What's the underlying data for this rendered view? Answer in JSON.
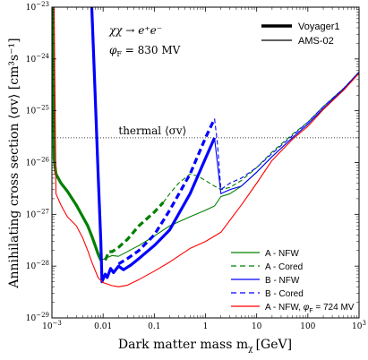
{
  "chart_data": {
    "type": "line",
    "xlabel": "Dark matter mass m",
    "xlabel_sub": "χ",
    "xlabel_unit": "[GeV]",
    "ylabel": "Annihilating cross section ⟨σv⟩ [cm³s⁻¹]",
    "xlim": [
      0.001,
      1000
    ],
    "ylim": [
      1e-29,
      1e-23
    ],
    "xscale": "log",
    "yscale": "log",
    "x_ticks": [
      {
        "value": 0.001,
        "base": "10",
        "exp": "−3"
      },
      {
        "value": 0.01,
        "plain": "0.01"
      },
      {
        "value": 0.1,
        "plain": "0.1"
      },
      {
        "value": 1,
        "plain": "1"
      },
      {
        "value": 10,
        "plain": "10"
      },
      {
        "value": 100,
        "plain": "100"
      },
      {
        "value": 1000,
        "base": "10",
        "exp": "3"
      }
    ],
    "y_ticks": [
      {
        "value": 1e-29,
        "base": "10",
        "exp": "−29"
      },
      {
        "value": 1e-28,
        "base": "10",
        "exp": "−28"
      },
      {
        "value": 1e-27,
        "base": "10",
        "exp": "−27"
      },
      {
        "value": 1e-26,
        "base": "10",
        "exp": "−26"
      },
      {
        "value": 1e-25,
        "base": "10",
        "exp": "−25"
      },
      {
        "value": 1e-24,
        "base": "10",
        "exp": "−24"
      },
      {
        "value": 1e-23,
        "base": "10",
        "exp": "−23"
      }
    ],
    "annotations": {
      "process": "χχ → e⁺e⁻",
      "phi": "φ",
      "phi_sub": "F",
      "phi_value": " = 830 MV",
      "thermal_label": "thermal ⟨σv⟩"
    },
    "thermal_value": 3e-26,
    "experiment_legend": [
      {
        "label": "Voyager1",
        "style": "thick"
      },
      {
        "label": "AMS-02",
        "style": "thin"
      }
    ],
    "series": [
      {
        "name": "A - NFW",
        "color": "#008000",
        "dash": "solid",
        "segments": [
          {
            "width": "thick",
            "points": [
              [
                0.00105,
                1e-23
              ],
              [
                0.0011,
                1.2e-26
              ],
              [
                0.0012,
                6e-27
              ],
              [
                0.0015,
                4e-27
              ],
              [
                0.002,
                2.8e-27
              ],
              [
                0.003,
                1.5e-27
              ],
              [
                0.004,
                9e-28
              ],
              [
                0.005,
                6e-28
              ],
              [
                0.006,
                3.8e-28
              ],
              [
                0.007,
                2.5e-28
              ],
              [
                0.008,
                1.7e-28
              ],
              [
                0.009,
                1.3e-28
              ]
            ]
          },
          {
            "width": "thin",
            "points": [
              [
                0.009,
                1.3e-28
              ],
              [
                0.015,
                1.6e-28
              ],
              [
                0.02,
                1.55e-28
              ],
              [
                0.05,
                2.5e-28
              ],
              [
                0.1,
                3.8e-28
              ],
              [
                0.2,
                6e-28
              ],
              [
                0.5,
                9e-28
              ],
              [
                1.0,
                1.2e-27
              ],
              [
                1.5,
                1.45e-27
              ],
              [
                2.0,
                2.2e-27
              ],
              [
                3.0,
                2.5e-27
              ],
              [
                5.0,
                3.5e-27
              ],
              [
                10,
                6.5e-27
              ],
              [
                20,
                1.3e-26
              ],
              [
                50,
                3e-26
              ],
              [
                100,
                5.5e-26
              ],
              [
                200,
                1.1e-25
              ],
              [
                500,
                2.6e-25
              ],
              [
                1000,
                5.5e-25
              ]
            ]
          }
        ]
      },
      {
        "name": "A - Cored",
        "color": "#008000",
        "dash": "dashed",
        "segments": [
          {
            "width": "thick",
            "points": [
              [
                0.011,
                1.3e-28
              ],
              [
                0.013,
                1.9e-28
              ],
              [
                0.015,
                1.9e-28
              ],
              [
                0.02,
                2.3e-28
              ],
              [
                0.03,
                3.3e-28
              ],
              [
                0.05,
                6e-28
              ],
              [
                0.1,
                1.1e-27
              ],
              [
                0.15,
                1.7e-27
              ]
            ]
          },
          {
            "width": "thin",
            "points": [
              [
                0.15,
                1.7e-27
              ],
              [
                0.2,
                2.5e-27
              ],
              [
                0.3,
                4e-27
              ],
              [
                0.5,
                6e-27
              ],
              [
                0.7,
                5.5e-27
              ],
              [
                1.0,
                4.5e-27
              ],
              [
                1.5,
                3.5e-27
              ],
              [
                2.0,
                3e-27
              ],
              [
                3.0,
                3.3e-27
              ],
              [
                5.0,
                4.5e-27
              ],
              [
                10,
                8e-27
              ],
              [
                20,
                1.6e-26
              ],
              [
                50,
                3.5e-26
              ],
              [
                100,
                6e-26
              ],
              [
                200,
                1.2e-25
              ],
              [
                500,
                2.7e-25
              ],
              [
                1000,
                5.6e-25
              ]
            ]
          }
        ]
      },
      {
        "name": "B - NFW",
        "color": "#0000ff",
        "dash": "solid",
        "segments": [
          {
            "width": "thick",
            "points": [
              [
                0.006,
                1e-23
              ],
              [
                0.007,
                2e-25
              ],
              [
                0.008,
                6e-27
              ],
              [
                0.009,
                3e-28
              ],
              [
                0.0095,
                5e-29
              ],
              [
                0.011,
                7e-29
              ],
              [
                0.012,
                6e-29
              ],
              [
                0.014,
                9e-29
              ],
              [
                0.016,
                7.5e-29
              ],
              [
                0.02,
                1e-28
              ],
              [
                0.025,
                8.5e-29
              ],
              [
                0.035,
                1.05e-28
              ],
              [
                0.05,
                1.4e-28
              ],
              [
                0.1,
                2.5e-28
              ],
              [
                0.2,
                5e-28
              ],
              [
                0.5,
                2.5e-27
              ],
              [
                1.0,
                1.2e-26
              ],
              [
                1.5,
                3e-26
              ]
            ]
          },
          {
            "width": "thin",
            "points": [
              [
                1.5,
                3e-26
              ],
              [
                2.0,
                2.5e-27
              ],
              [
                3.0,
                3e-27
              ],
              [
                5.0,
                3.5e-27
              ],
              [
                10,
                6.5e-27
              ],
              [
                20,
                1.3e-26
              ],
              [
                50,
                3e-26
              ],
              [
                100,
                5.5e-26
              ],
              [
                200,
                1.1e-25
              ],
              [
                500,
                2.6e-25
              ],
              [
                1000,
                5.5e-25
              ]
            ]
          }
        ]
      },
      {
        "name": "B - Cored",
        "color": "#0000ff",
        "dash": "dashed",
        "segments": [
          {
            "width": "thick",
            "points": [
              [
                0.02,
                1.1e-28
              ],
              [
                0.03,
                1.4e-28
              ],
              [
                0.05,
                2e-28
              ],
              [
                0.1,
                4e-28
              ],
              [
                0.2,
                1.2e-27
              ],
              [
                0.5,
                6e-27
              ],
              [
                1.0,
                3e-26
              ],
              [
                1.5,
                7e-26
              ]
            ]
          },
          {
            "width": "thin",
            "points": [
              [
                1.5,
                7e-26
              ],
              [
                1.7,
                2.5e-26
              ],
              [
                2.0,
                3e-27
              ],
              [
                3.0,
                4e-27
              ],
              [
                5.0,
                5e-27
              ],
              [
                10,
                8e-27
              ],
              [
                20,
                1.5e-26
              ],
              [
                50,
                3.3e-26
              ],
              [
                100,
                6e-26
              ],
              [
                200,
                1.2e-25
              ],
              [
                500,
                2.7e-25
              ],
              [
                1000,
                5.6e-25
              ]
            ]
          }
        ]
      },
      {
        "name": "A - NFW, ",
        "label_phi": "φ",
        "label_phi_sub": "F",
        "label_phi_value": " = 724 MV",
        "color": "#ff0000",
        "dash": "solid",
        "segments": [
          {
            "width": "thin",
            "points": [
              [
                0.0011,
                1e-23
              ],
              [
                0.0012,
                2.5e-27
              ],
              [
                0.0015,
                1.5e-27
              ],
              [
                0.002,
                9e-28
              ],
              [
                0.003,
                6e-28
              ],
              [
                0.004,
                3.5e-28
              ],
              [
                0.005,
                2e-28
              ],
              [
                0.006,
                1.2e-28
              ],
              [
                0.008,
                6e-29
              ],
              [
                0.01,
                4.8e-29
              ],
              [
                0.015,
                4.2e-29
              ],
              [
                0.02,
                4e-29
              ],
              [
                0.03,
                4.3e-29
              ],
              [
                0.05,
                5.5e-29
              ],
              [
                0.1,
                8e-29
              ],
              [
                0.2,
                1.2e-28
              ],
              [
                0.5,
                2.2e-28
              ],
              [
                1.0,
                3e-28
              ],
              [
                2.0,
                4.5e-28
              ],
              [
                5.0,
                1.5e-27
              ],
              [
                10,
                4e-27
              ],
              [
                20,
                1.1e-26
              ],
              [
                50,
                2.8e-26
              ],
              [
                100,
                5e-26
              ],
              [
                200,
                1.05e-25
              ],
              [
                500,
                2.5e-25
              ],
              [
                1000,
                5.3e-25
              ]
            ]
          }
        ]
      }
    ],
    "legend_position": "lower-right"
  }
}
